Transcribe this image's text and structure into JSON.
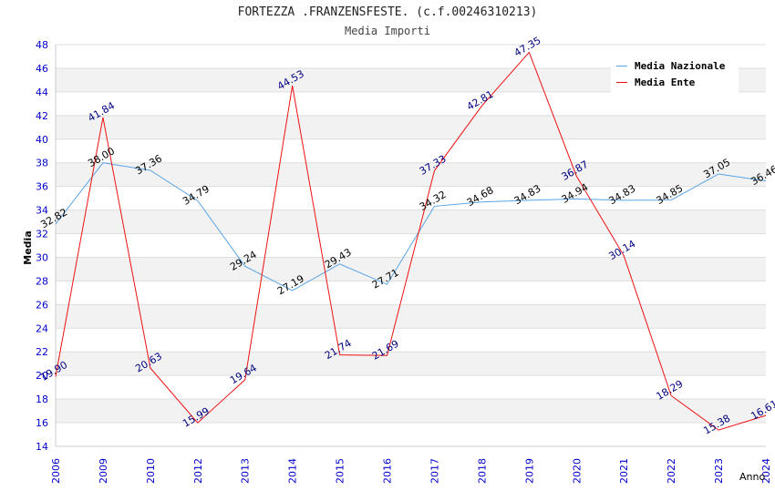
{
  "title": "FORTEZZA .FRANZENSFESTE. (c.f.00246310213)",
  "subtitle": "Media Importi",
  "colors": {
    "nazionale": "#5aa4e6",
    "ente": "#ee1111",
    "tick": "#0000cc",
    "ente_label": "#000080"
  },
  "chart_data": {
    "type": "line",
    "title": "FORTEZZA .FRANZENSFESTE. (c.f.00246310213)",
    "subtitle": "Media Importi",
    "xlabel": "Anno",
    "ylabel": "Media",
    "ylim": [
      14,
      48
    ],
    "yticks": [
      14,
      16,
      18,
      20,
      22,
      24,
      26,
      28,
      30,
      32,
      34,
      36,
      38,
      40,
      42,
      44,
      46,
      48
    ],
    "grid": true,
    "legend_position": "top-right",
    "categories": [
      "2006",
      "2009",
      "2010",
      "2012",
      "2013",
      "2014",
      "2015",
      "2016",
      "2017",
      "2018",
      "2019",
      "2020",
      "2021",
      "2022",
      "2023",
      "2024"
    ],
    "series": [
      {
        "name": "Media Nazionale",
        "values": [
          32.82,
          38.0,
          37.36,
          34.79,
          29.24,
          27.19,
          29.43,
          27.71,
          34.32,
          34.68,
          34.83,
          34.94,
          34.83,
          34.85,
          37.05,
          36.46
        ],
        "labels": [
          "32.82",
          "38.00",
          "37.36",
          "34.79",
          "29.24",
          "27.19",
          "29.43",
          "27.71",
          "34.32",
          "34.68",
          "34.83",
          "34.94",
          "34.83",
          "34.85",
          "37.05",
          "36.46"
        ]
      },
      {
        "name": "Media Ente",
        "values": [
          19.9,
          41.84,
          20.63,
          15.99,
          19.64,
          44.53,
          21.74,
          21.69,
          37.33,
          42.81,
          47.35,
          36.87,
          30.14,
          18.29,
          15.38,
          16.61
        ],
        "labels": [
          "19.90",
          "41.84",
          "20.63",
          "15.99",
          "19.64",
          "44.53",
          "21.74",
          "21.69",
          "37.33",
          "42.81",
          "47.35",
          "36.87",
          "30.14",
          "18.29",
          "15.38",
          "16.61"
        ]
      }
    ]
  }
}
